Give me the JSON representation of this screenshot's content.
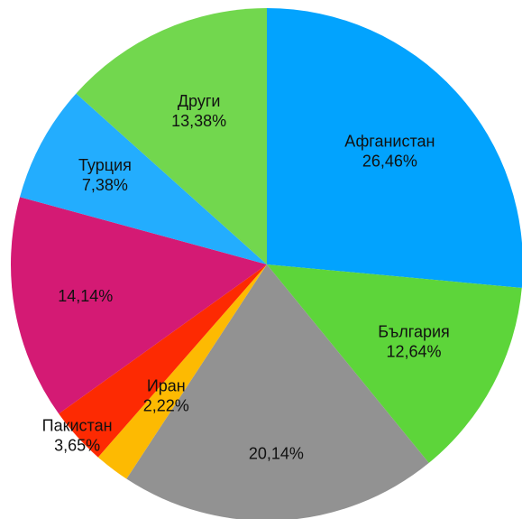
{
  "chart_data": {
    "type": "pie",
    "categories": [
      "Афганистан",
      "България",
      null,
      "Иран",
      "Пакистан",
      null,
      "Турция",
      "Други"
    ],
    "values": [
      26.46,
      12.64,
      20.14,
      2.22,
      3.65,
      14.14,
      7.38,
      13.38
    ],
    "value_labels": [
      "26,46%",
      "12,64%",
      "20,14%",
      "2,22%",
      "3,65%",
      "14,14%",
      "7,38%",
      "13,38%"
    ],
    "colors": [
      "#02a3fe",
      "#5dd53a",
      "#929292",
      "#fdba02",
      "#fd2a02",
      "#d41a74",
      "#23adfe",
      "#72d74e"
    ]
  }
}
